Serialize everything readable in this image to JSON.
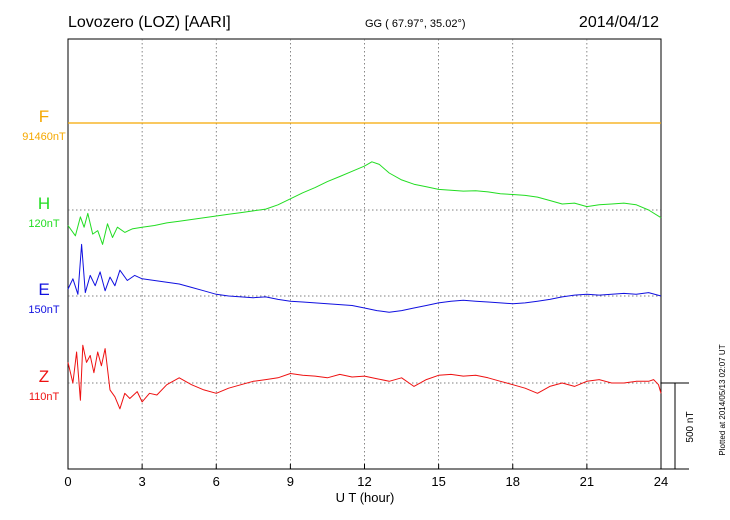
{
  "header": {
    "title": "Lovozero (LOZ)  [AARI]",
    "coords": "GG ( 67.97°,  35.02°)",
    "date": "2014/04/12"
  },
  "side_note": "Plotted at 2014/05/13 02:07 UT",
  "scale_bar_label": "500 nT",
  "chart_data": {
    "type": "line",
    "xlabel": "U T (hour)",
    "xlim": [
      0,
      24
    ],
    "xticks": [
      "0",
      "3",
      "6",
      "9",
      "12",
      "15",
      "18",
      "21",
      "24"
    ],
    "grid": true,
    "series": [
      {
        "name": "F",
        "baseline_label": "91460nT",
        "color": "#f5a800",
        "offset_nt": 0,
        "x": [
          0,
          24
        ],
        "y": [
          0,
          0
        ]
      },
      {
        "name": "H",
        "baseline_label": "120nT",
        "color": "#22dd22",
        "offset_nt": 0,
        "x": [
          0,
          0.3,
          0.5,
          0.65,
          0.8,
          1.0,
          1.2,
          1.4,
          1.6,
          1.8,
          2.0,
          2.3,
          2.6,
          3.0,
          3.5,
          4.0,
          4.5,
          5.0,
          5.5,
          6.0,
          6.5,
          7.0,
          7.5,
          8.0,
          8.5,
          9.0,
          9.5,
          10.0,
          10.5,
          11.0,
          11.5,
          12.0,
          12.3,
          12.6,
          13.0,
          13.5,
          14.0,
          14.5,
          15.0,
          15.5,
          16.0,
          16.5,
          17.0,
          17.5,
          18.0,
          18.5,
          19.0,
          19.5,
          20.0,
          20.5,
          21.0,
          21.5,
          22.0,
          22.5,
          23.0,
          23.5,
          24.0
        ],
        "y": [
          -90,
          -150,
          -40,
          -100,
          -20,
          -140,
          -120,
          -200,
          -80,
          -160,
          -100,
          -130,
          -110,
          -100,
          -90,
          -75,
          -65,
          -55,
          -45,
          -35,
          -25,
          -15,
          -5,
          5,
          30,
          65,
          100,
          130,
          165,
          195,
          225,
          255,
          280,
          265,
          215,
          175,
          150,
          135,
          120,
          115,
          110,
          112,
          105,
          95,
          90,
          85,
          75,
          55,
          35,
          40,
          20,
          30,
          35,
          40,
          30,
          0,
          -45
        ]
      },
      {
        "name": "E",
        "baseline_label": "150nT",
        "color": "#1010e0",
        "offset_nt": 0,
        "x": [
          0,
          0.2,
          0.4,
          0.55,
          0.7,
          0.9,
          1.1,
          1.3,
          1.5,
          1.7,
          1.9,
          2.1,
          2.4,
          2.7,
          3.0,
          3.5,
          4.0,
          4.5,
          5.0,
          5.5,
          6.0,
          6.5,
          7.0,
          7.5,
          8.0,
          8.5,
          9.0,
          9.5,
          10.0,
          10.5,
          11.0,
          11.5,
          12.0,
          12.5,
          13.0,
          13.5,
          14.0,
          14.5,
          15.0,
          15.5,
          16.0,
          16.5,
          17.0,
          17.5,
          18.0,
          18.5,
          19.0,
          19.5,
          20.0,
          20.5,
          21.0,
          21.5,
          22.0,
          22.5,
          23.0,
          23.5,
          24.0
        ],
        "y": [
          40,
          100,
          10,
          300,
          20,
          120,
          60,
          140,
          30,
          110,
          60,
          150,
          90,
          120,
          100,
          90,
          80,
          70,
          50,
          30,
          10,
          0,
          -5,
          -10,
          -5,
          -20,
          -30,
          -35,
          -40,
          -45,
          -50,
          -55,
          -70,
          -85,
          -95,
          -85,
          -70,
          -55,
          -40,
          -30,
          -25,
          -30,
          -35,
          -40,
          -45,
          -40,
          -30,
          -20,
          -5,
          5,
          10,
          5,
          10,
          15,
          10,
          20,
          0
        ]
      },
      {
        "name": "Z",
        "baseline_label": "110nT",
        "color": "#ee1111",
        "offset_nt": 0,
        "x": [
          0,
          0.2,
          0.35,
          0.5,
          0.6,
          0.75,
          0.9,
          1.05,
          1.2,
          1.35,
          1.5,
          1.7,
          1.9,
          2.1,
          2.3,
          2.5,
          2.8,
          3.0,
          3.3,
          3.6,
          4.0,
          4.5,
          5.0,
          5.5,
          6.0,
          6.5,
          7.0,
          7.5,
          8.0,
          8.5,
          9.0,
          9.5,
          10.0,
          10.5,
          11.0,
          11.5,
          12.0,
          12.5,
          13.0,
          13.5,
          14.0,
          14.5,
          15.0,
          15.5,
          16.0,
          16.5,
          17.0,
          17.5,
          18.0,
          18.5,
          19.0,
          19.5,
          20.0,
          20.5,
          21.0,
          21.5,
          22.0,
          22.5,
          23.0,
          23.5,
          23.7,
          23.9,
          24.0
        ],
        "y": [
          120,
          0,
          180,
          -100,
          220,
          120,
          160,
          60,
          180,
          100,
          200,
          -40,
          -80,
          -150,
          -60,
          -90,
          -50,
          -110,
          -60,
          -70,
          -10,
          30,
          -10,
          -40,
          -60,
          -30,
          -10,
          10,
          20,
          30,
          55,
          45,
          40,
          30,
          50,
          35,
          40,
          25,
          10,
          30,
          -20,
          20,
          45,
          50,
          40,
          45,
          30,
          10,
          -10,
          -30,
          -60,
          -20,
          0,
          -20,
          10,
          20,
          0,
          0,
          10,
          10,
          20,
          -10,
          -60
        ]
      }
    ]
  }
}
